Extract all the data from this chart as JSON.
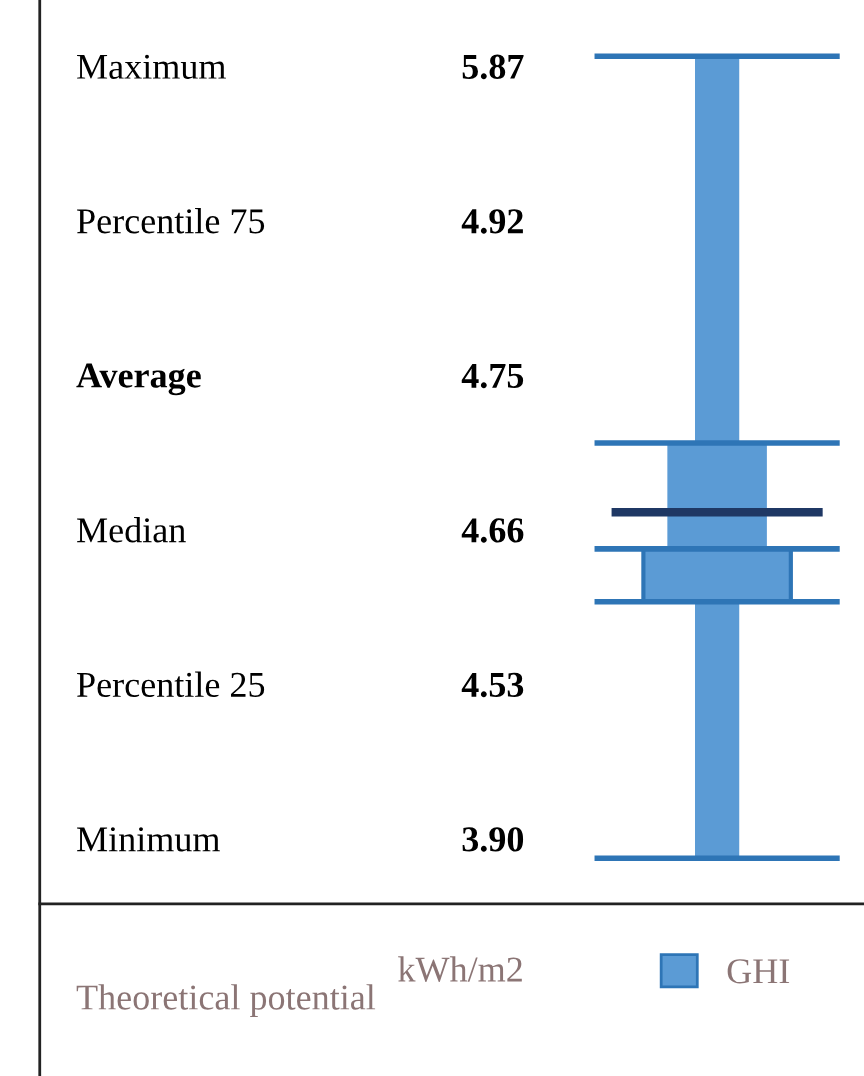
{
  "chart_data": {
    "type": "other",
    "xlabel": "Theoretical potential",
    "ylabel": "kWh/m2",
    "categories": [
      "Maximum",
      "Percentile 75",
      "Average",
      "Median",
      "Percentile 25",
      "Minimum"
    ],
    "series": [
      {
        "name": "GHI",
        "color": "#5b9bd5",
        "values": [
          5.87,
          4.92,
          4.75,
          4.66,
          4.53,
          3.9
        ],
        "value_labels": [
          "5.87",
          "4.92",
          "4.75",
          "4.66",
          "4.53",
          "3.90"
        ]
      }
    ],
    "data_labels": true,
    "legend": "bottom"
  }
}
